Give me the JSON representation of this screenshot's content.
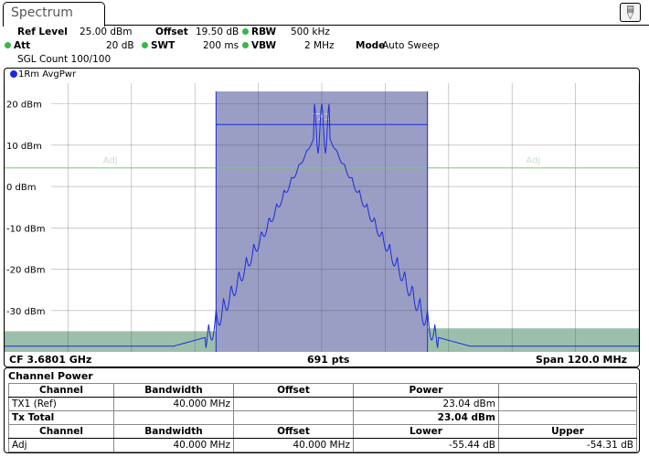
{
  "tab": {
    "label": "Spectrum"
  },
  "setup": {
    "ref_level_label": "Ref Level",
    "ref_level_value": "25.00 dBm",
    "offset_label": "Offset",
    "offset_value": "19.50 dB",
    "rbw_label": "RBW",
    "rbw_value": "500 kHz",
    "att_label": "Att",
    "att_value": "20 dB",
    "swt_label": "SWT",
    "swt_value": "200 ms",
    "vbw_label": "VBW",
    "vbw_value": "2 MHz",
    "mode_label": "Mode",
    "mode_value": "Auto Sweep",
    "sgl_count": "SGL Count 100/100",
    "status_color": "#3cb54a"
  },
  "trace": {
    "label": "1Rm AvgPwr",
    "color": "#1a2bdc"
  },
  "chart_data": {
    "type": "line",
    "y_axis_ticks": [
      "20 dBm",
      "10 dBm",
      "0 dBm",
      "-10 dBm",
      "-20 dBm",
      "-30 dBm"
    ],
    "ylim": [
      -40,
      25
    ],
    "xlim": [
      -60,
      60
    ],
    "channel_bars": [
      {
        "label": "Adj",
        "x_start": -60,
        "x_end": -20,
        "level": 4.5,
        "limit": -35,
        "fill": "#9cbfac"
      },
      {
        "label": "TX1",
        "x_start": -20,
        "x_end": 20,
        "level": 15,
        "limit": 23,
        "fill": "#9a9ec4"
      },
      {
        "label": "Adj",
        "x_start": 20,
        "x_end": 60,
        "level": 4.5,
        "limit": -34.3,
        "fill": "#9cbfac"
      }
    ],
    "left_footer": "CF 3.6801 GHz",
    "center_footer": "691 pts",
    "right_footer": "Span 120.0 MHz"
  },
  "channel_power": {
    "title": "Channel Power",
    "header1": [
      "Channel",
      "Bandwidth",
      "Offset",
      "Power",
      ""
    ],
    "rows1": [
      [
        "TX1 (Ref)",
        "40.000 MHz",
        "",
        "23.04 dBm",
        ""
      ]
    ],
    "tx_total_label": "Tx Total",
    "tx_total_value": "23.04 dBm",
    "header2": [
      "Channel",
      "Bandwidth",
      "Offset",
      "Lower",
      "Upper"
    ],
    "rows2": [
      [
        "Adj",
        "40.000 MHz",
        "40.000 MHz",
        "-55.44 dB",
        "-54.31 dB"
      ]
    ]
  }
}
